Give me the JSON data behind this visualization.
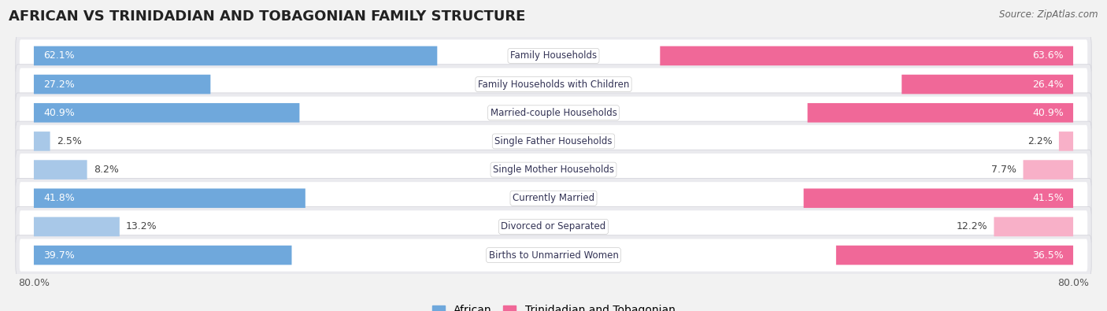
{
  "title": "AFRICAN VS TRINIDADIAN AND TOBAGONIAN FAMILY STRUCTURE",
  "source": "Source: ZipAtlas.com",
  "categories": [
    "Family Households",
    "Family Households with Children",
    "Married-couple Households",
    "Single Father Households",
    "Single Mother Households",
    "Currently Married",
    "Divorced or Separated",
    "Births to Unmarried Women"
  ],
  "african_values": [
    62.1,
    27.2,
    40.9,
    2.5,
    8.2,
    41.8,
    13.2,
    39.7
  ],
  "trinidadian_values": [
    63.6,
    26.4,
    40.9,
    2.2,
    7.7,
    41.5,
    12.2,
    36.5
  ],
  "african_color_large": "#6fa8dc",
  "african_color_small": "#a8c8e8",
  "trinidadian_color_large": "#f06898",
  "trinidadian_color_small": "#f8b0c8",
  "african_label": "African",
  "trinidadian_label": "Trinidadian and Tobagonian",
  "axis_max": 80.0,
  "axis_label_left": "80.0%",
  "axis_label_right": "80.0%",
  "background_color": "#f2f2f2",
  "row_bg_color": "#e8e8ec",
  "row_inner_color": "#ffffff",
  "title_fontsize": 13,
  "label_fontsize": 8.5,
  "value_fontsize": 9,
  "legend_fontsize": 10,
  "large_threshold": 15
}
